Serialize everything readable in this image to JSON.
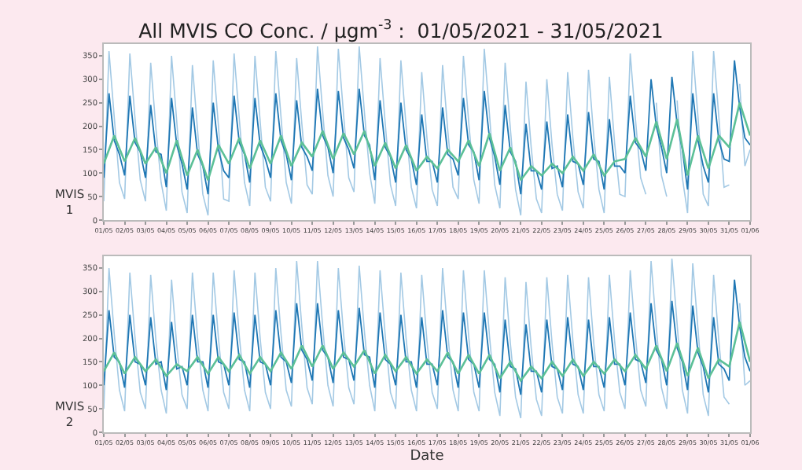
{
  "chart_data": [
    {
      "type": "line",
      "title": "All MVIS CO Conc. / μgm$^{-3}$ :  01/05/2021 - 31/05/2021",
      "ylabel": "MVIS\n1",
      "x": [
        "2021-05-01T00:00",
        "2021-05-01T06:00",
        "2021-05-01T12:00",
        "2021-05-01T18:00",
        "2021-05-02T00:00",
        "2021-05-02T06:00",
        "2021-05-02T12:00",
        "2021-05-02T18:00",
        "2021-05-03T00:00",
        "2021-05-03T06:00",
        "2021-05-03T12:00",
        "2021-05-03T18:00",
        "2021-05-04T00:00",
        "2021-05-04T06:00",
        "2021-05-04T12:00",
        "2021-05-04T18:00",
        "2021-05-05T00:00",
        "2021-05-05T06:00",
        "2021-05-05T12:00",
        "2021-05-05T18:00",
        "2021-05-06T00:00",
        "2021-05-06T06:00",
        "2021-05-06T12:00",
        "2021-05-06T18:00",
        "2021-05-07T00:00",
        "2021-05-07T06:00",
        "2021-05-07T12:00",
        "2021-05-07T18:00",
        "2021-05-08T00:00",
        "2021-05-08T06:00",
        "2021-05-08T12:00",
        "2021-05-08T18:00",
        "2021-05-09T00:00",
        "2021-05-09T06:00",
        "2021-05-09T12:00",
        "2021-05-09T18:00",
        "2021-05-10T00:00",
        "2021-05-10T06:00",
        "2021-05-10T12:00",
        "2021-05-10T18:00",
        "2021-05-11T00:00",
        "2021-05-11T06:00",
        "2021-05-11T12:00",
        "2021-05-11T18:00",
        "2021-05-12T00:00",
        "2021-05-12T06:00",
        "2021-05-12T12:00",
        "2021-05-12T18:00",
        "2021-05-13T00:00",
        "2021-05-13T06:00",
        "2021-05-13T12:00",
        "2021-05-13T18:00",
        "2021-05-14T00:00",
        "2021-05-14T06:00",
        "2021-05-14T12:00",
        "2021-05-14T18:00",
        "2021-05-15T00:00",
        "2021-05-15T06:00",
        "2021-05-15T12:00",
        "2021-05-15T18:00",
        "2021-05-16T00:00",
        "2021-05-16T06:00",
        "2021-05-16T12:00",
        "2021-05-16T18:00",
        "2021-05-17T00:00",
        "2021-05-17T06:00",
        "2021-05-17T12:00",
        "2021-05-17T18:00",
        "2021-05-18T00:00",
        "2021-05-18T06:00",
        "2021-05-18T12:00",
        "2021-05-18T18:00",
        "2021-05-19T00:00",
        "2021-05-19T06:00",
        "2021-05-19T12:00",
        "2021-05-19T18:00",
        "2021-05-20T00:00",
        "2021-05-20T06:00",
        "2021-05-20T12:00",
        "2021-05-20T18:00",
        "2021-05-21T00:00",
        "2021-05-21T06:00",
        "2021-05-21T12:00",
        "2021-05-21T18:00",
        "2021-05-22T00:00",
        "2021-05-22T06:00",
        "2021-05-22T12:00",
        "2021-05-22T18:00",
        "2021-05-23T00:00",
        "2021-05-23T06:00",
        "2021-05-23T12:00",
        "2021-05-23T18:00",
        "2021-05-24T00:00",
        "2021-05-24T06:00",
        "2021-05-24T12:00",
        "2021-05-24T18:00",
        "2021-05-25T00:00",
        "2021-05-25T06:00",
        "2021-05-25T12:00",
        "2021-05-25T18:00",
        "2021-05-26T00:00",
        "2021-05-26T06:00",
        "2021-05-26T12:00",
        "2021-05-26T18:00",
        "2021-05-27T00:00",
        "2021-05-27T06:00",
        "2021-05-27T12:00",
        "2021-05-27T18:00",
        "2021-05-28T00:00",
        "2021-05-28T06:00",
        "2021-05-28T12:00",
        "2021-05-28T18:00",
        "2021-05-29T00:00",
        "2021-05-29T06:00",
        "2021-05-29T12:00",
        "2021-05-29T18:00",
        "2021-05-30T00:00",
        "2021-05-30T06:00",
        "2021-05-30T12:00",
        "2021-05-30T18:00",
        "2021-05-31T00:00",
        "2021-05-31T06:00",
        "2021-05-31T12:00",
        "2021-05-31T18:00",
        "2021-06-01T00:00"
      ],
      "series": [
        {
          "color": "#a3c9e4",
          "values": [
            40,
            360,
            220,
            80,
            45,
            355,
            215,
            85,
            40,
            335,
            195,
            80,
            20,
            350,
            210,
            60,
            15,
            330,
            190,
            55,
            10,
            340,
            200,
            45,
            40,
            355,
            215,
            80,
            30,
            350,
            210,
            70,
            40,
            360,
            220,
            80,
            35,
            345,
            205,
            75,
            55,
            370,
            230,
            95,
            50,
            365,
            225,
            90,
            60,
            370,
            230,
            100,
            35,
            345,
            205,
            75,
            30,
            340,
            200,
            70,
            25,
            315,
            175,
            65,
            30,
            330,
            190,
            70,
            45,
            350,
            210,
            85,
            35,
            365,
            225,
            75,
            25,
            335,
            195,
            65,
            10,
            295,
            155,
            45,
            15,
            300,
            160,
            55,
            20,
            315,
            175,
            60,
            25,
            320,
            180,
            65,
            15,
            305,
            165,
            55,
            50,
            355,
            215,
            90,
            55,
            null,
            250,
            95,
            50,
            null,
            255,
            90,
            15,
            360,
            220,
            55,
            30,
            360,
            220,
            70,
            75,
            null,
            290,
            115,
            150
          ]
        },
        {
          "color": "#1f77b4",
          "values": [
            90,
            270,
            170,
            140,
            95,
            265,
            165,
            145,
            90,
            245,
            145,
            140,
            70,
            260,
            160,
            120,
            65,
            240,
            140,
            115,
            55,
            250,
            150,
            105,
            90,
            265,
            165,
            140,
            80,
            260,
            160,
            130,
            90,
            270,
            170,
            140,
            85,
            255,
            155,
            135,
            105,
            280,
            180,
            155,
            100,
            275,
            175,
            150,
            110,
            280,
            180,
            160,
            85,
            255,
            155,
            135,
            80,
            250,
            150,
            130,
            75,
            225,
            125,
            125,
            80,
            240,
            140,
            130,
            95,
            260,
            160,
            145,
            85,
            275,
            175,
            135,
            75,
            245,
            145,
            125,
            55,
            205,
            105,
            105,
            65,
            210,
            110,
            115,
            70,
            225,
            125,
            120,
            75,
            230,
            130,
            125,
            65,
            215,
            115,
            115,
            100,
            265,
            165,
            150,
            105,
            300,
            200,
            155,
            100,
            305,
            205,
            150,
            65,
            270,
            170,
            115,
            80,
            270,
            170,
            130,
            125,
            340,
            240,
            175,
            160
          ]
        },
        {
          "color": "#5cc097",
          "x": [
            "2021-05-01T00:00",
            "2021-05-01T12:00",
            "2021-05-02T00:00",
            "2021-05-02T12:00",
            "2021-05-03T00:00",
            "2021-05-03T12:00",
            "2021-05-04T00:00",
            "2021-05-04T12:00",
            "2021-05-05T00:00",
            "2021-05-05T12:00",
            "2021-05-06T00:00",
            "2021-05-06T12:00",
            "2021-05-07T00:00",
            "2021-05-07T12:00",
            "2021-05-08T00:00",
            "2021-05-08T12:00",
            "2021-05-09T00:00",
            "2021-05-09T12:00",
            "2021-05-10T00:00",
            "2021-05-10T12:00",
            "2021-05-11T00:00",
            "2021-05-11T12:00",
            "2021-05-12T00:00",
            "2021-05-12T12:00",
            "2021-05-13T00:00",
            "2021-05-13T12:00",
            "2021-05-14T00:00",
            "2021-05-14T12:00",
            "2021-05-15T00:00",
            "2021-05-15T12:00",
            "2021-05-16T00:00",
            "2021-05-16T12:00",
            "2021-05-17T00:00",
            "2021-05-17T12:00",
            "2021-05-18T00:00",
            "2021-05-18T12:00",
            "2021-05-19T00:00",
            "2021-05-19T12:00",
            "2021-05-20T00:00",
            "2021-05-20T12:00",
            "2021-05-21T00:00",
            "2021-05-21T12:00",
            "2021-05-22T00:00",
            "2021-05-22T12:00",
            "2021-05-23T00:00",
            "2021-05-23T12:00",
            "2021-05-24T00:00",
            "2021-05-24T12:00",
            "2021-05-25T00:00",
            "2021-05-25T12:00",
            "2021-05-26T00:00",
            "2021-05-26T12:00",
            "2021-05-27T00:00",
            "2021-05-27T12:00",
            "2021-05-28T00:00",
            "2021-05-28T12:00",
            "2021-05-29T00:00",
            "2021-05-29T12:00",
            "2021-05-30T00:00",
            "2021-05-30T12:00",
            "2021-05-31T00:00",
            "2021-05-31T12:00",
            "2021-06-01T00:00"
          ],
          "values": [
            120,
            180,
            125,
            175,
            120,
            155,
            100,
            170,
            95,
            150,
            85,
            160,
            120,
            175,
            110,
            170,
            120,
            180,
            115,
            165,
            135,
            190,
            130,
            185,
            140,
            190,
            115,
            165,
            110,
            160,
            105,
            135,
            110,
            150,
            125,
            170,
            115,
            185,
            105,
            155,
            85,
            115,
            95,
            120,
            100,
            135,
            105,
            140,
            95,
            125,
            130,
            175,
            135,
            210,
            130,
            215,
            95,
            180,
            110,
            180,
            155,
            250,
            180
          ]
        }
      ],
      "xlim": [
        "2021-05-01",
        "2021-06-01"
      ],
      "xticks": [
        {
          "value": "2021-05-01",
          "label": "01/05"
        },
        {
          "value": "2021-05-02",
          "label": "02/05"
        },
        {
          "value": "2021-05-03",
          "label": "03/05"
        },
        {
          "value": "2021-05-04",
          "label": "04/05"
        },
        {
          "value": "2021-05-05",
          "label": "05/05"
        },
        {
          "value": "2021-05-06",
          "label": "06/05"
        },
        {
          "value": "2021-05-07",
          "label": "07/05"
        },
        {
          "value": "2021-05-08",
          "label": "08/05"
        },
        {
          "value": "2021-05-09",
          "label": "09/05"
        },
        {
          "value": "2021-05-10",
          "label": "10/05"
        },
        {
          "value": "2021-05-11",
          "label": "11/05"
        },
        {
          "value": "2021-05-12",
          "label": "12/05"
        },
        {
          "value": "2021-05-13",
          "label": "13/05"
        },
        {
          "value": "2021-05-14",
          "label": "14/05"
        },
        {
          "value": "2021-05-15",
          "label": "15/05"
        },
        {
          "value": "2021-05-16",
          "label": "16/05"
        },
        {
          "value": "2021-05-17",
          "label": "17/05"
        },
        {
          "value": "2021-05-18",
          "label": "18/05"
        },
        {
          "value": "2021-05-19",
          "label": "19/05"
        },
        {
          "value": "2021-05-20",
          "label": "20/05"
        },
        {
          "value": "2021-05-21",
          "label": "21/05"
        },
        {
          "value": "2021-05-22",
          "label": "22/05"
        },
        {
          "value": "2021-05-23",
          "label": "23/05"
        },
        {
          "value": "2021-05-24",
          "label": "24/05"
        },
        {
          "value": "2021-05-25",
          "label": "25/05"
        },
        {
          "value": "2021-05-26",
          "label": "26/05"
        },
        {
          "value": "2021-05-27",
          "label": "27/05"
        },
        {
          "value": "2021-05-28",
          "label": "28/05"
        },
        {
          "value": "2021-05-29",
          "label": "29/05"
        },
        {
          "value": "2021-05-30",
          "label": "30/05"
        },
        {
          "value": "2021-05-31",
          "label": "31/05"
        },
        {
          "value": "2021-06-01",
          "label": "01/06"
        }
      ],
      "ylim": [
        0,
        375
      ],
      "yticks": [
        0,
        50,
        100,
        150,
        200,
        250,
        300,
        350
      ]
    },
    {
      "type": "line",
      "xlabel": "Date",
      "ylabel": "MVIS\n2",
      "x": [
        "2021-05-01T00:00",
        "2021-05-01T06:00",
        "2021-05-01T12:00",
        "2021-05-01T18:00",
        "2021-05-02T00:00",
        "2021-05-02T06:00",
        "2021-05-02T12:00",
        "2021-05-02T18:00",
        "2021-05-03T00:00",
        "2021-05-03T06:00",
        "2021-05-03T12:00",
        "2021-05-03T18:00",
        "2021-05-04T00:00",
        "2021-05-04T06:00",
        "2021-05-04T12:00",
        "2021-05-04T18:00",
        "2021-05-05T00:00",
        "2021-05-05T06:00",
        "2021-05-05T12:00",
        "2021-05-05T18:00",
        "2021-05-06T00:00",
        "2021-05-06T06:00",
        "2021-05-06T12:00",
        "2021-05-06T18:00",
        "2021-05-07T00:00",
        "2021-05-07T06:00",
        "2021-05-07T12:00",
        "2021-05-07T18:00",
        "2021-05-08T00:00",
        "2021-05-08T06:00",
        "2021-05-08T12:00",
        "2021-05-08T18:00",
        "2021-05-09T00:00",
        "2021-05-09T06:00",
        "2021-05-09T12:00",
        "2021-05-09T18:00",
        "2021-05-10T00:00",
        "2021-05-10T06:00",
        "2021-05-10T12:00",
        "2021-05-10T18:00",
        "2021-05-11T00:00",
        "2021-05-11T06:00",
        "2021-05-11T12:00",
        "2021-05-11T18:00",
        "2021-05-12T00:00",
        "2021-05-12T06:00",
        "2021-05-12T12:00",
        "2021-05-12T18:00",
        "2021-05-13T00:00",
        "2021-05-13T06:00",
        "2021-05-13T12:00",
        "2021-05-13T18:00",
        "2021-05-14T00:00",
        "2021-05-14T06:00",
        "2021-05-14T12:00",
        "2021-05-14T18:00",
        "2021-05-15T00:00",
        "2021-05-15T06:00",
        "2021-05-15T12:00",
        "2021-05-15T18:00",
        "2021-05-16T00:00",
        "2021-05-16T06:00",
        "2021-05-16T12:00",
        "2021-05-16T18:00",
        "2021-05-17T00:00",
        "2021-05-17T06:00",
        "2021-05-17T12:00",
        "2021-05-17T18:00",
        "2021-05-18T00:00",
        "2021-05-18T06:00",
        "2021-05-18T12:00",
        "2021-05-18T18:00",
        "2021-05-19T00:00",
        "2021-05-19T06:00",
        "2021-05-19T12:00",
        "2021-05-19T18:00",
        "2021-05-20T00:00",
        "2021-05-20T06:00",
        "2021-05-20T12:00",
        "2021-05-20T18:00",
        "2021-05-21T00:00",
        "2021-05-21T06:00",
        "2021-05-21T12:00",
        "2021-05-21T18:00",
        "2021-05-22T00:00",
        "2021-05-22T06:00",
        "2021-05-22T12:00",
        "2021-05-22T18:00",
        "2021-05-23T00:00",
        "2021-05-23T06:00",
        "2021-05-23T12:00",
        "2021-05-23T18:00",
        "2021-05-24T00:00",
        "2021-05-24T06:00",
        "2021-05-24T12:00",
        "2021-05-24T18:00",
        "2021-05-25T00:00",
        "2021-05-25T06:00",
        "2021-05-25T12:00",
        "2021-05-25T18:00",
        "2021-05-26T00:00",
        "2021-05-26T06:00",
        "2021-05-26T12:00",
        "2021-05-26T18:00",
        "2021-05-27T00:00",
        "2021-05-27T06:00",
        "2021-05-27T12:00",
        "2021-05-27T18:00",
        "2021-05-28T00:00",
        "2021-05-28T06:00",
        "2021-05-28T12:00",
        "2021-05-28T18:00",
        "2021-05-29T00:00",
        "2021-05-29T06:00",
        "2021-05-29T12:00",
        "2021-05-29T18:00",
        "2021-05-30T00:00",
        "2021-05-30T06:00",
        "2021-05-30T12:00",
        "2021-05-30T18:00",
        "2021-05-31T00:00",
        "2021-05-31T06:00",
        "2021-05-31T12:00",
        "2021-05-31T18:00",
        "2021-06-01T00:00"
      ],
      "series": [
        {
          "color": "#a3c9e4",
          "values": [
            50,
            350,
            210,
            90,
            45,
            340,
            200,
            85,
            50,
            335,
            195,
            90,
            40,
            325,
            185,
            80,
            50,
            340,
            200,
            90,
            45,
            340,
            200,
            85,
            50,
            345,
            205,
            90,
            45,
            340,
            200,
            85,
            50,
            350,
            210,
            90,
            55,
            365,
            225,
            95,
            60,
            365,
            225,
            100,
            55,
            350,
            210,
            95,
            60,
            355,
            215,
            100,
            45,
            345,
            205,
            85,
            50,
            340,
            200,
            90,
            45,
            335,
            195,
            85,
            50,
            350,
            210,
            90,
            45,
            345,
            205,
            85,
            45,
            345,
            205,
            85,
            35,
            330,
            190,
            75,
            30,
            320,
            180,
            70,
            35,
            330,
            190,
            75,
            40,
            335,
            195,
            80,
            40,
            330,
            190,
            80,
            45,
            335,
            195,
            85,
            50,
            345,
            205,
            90,
            55,
            365,
            225,
            95,
            50,
            370,
            230,
            90,
            40,
            360,
            220,
            80,
            35,
            335,
            195,
            75,
            60,
            null,
            275,
            100,
            110
          ]
        },
        {
          "color": "#1f77b4",
          "values": [
            100,
            260,
            160,
            150,
            95,
            250,
            150,
            145,
            100,
            245,
            145,
            150,
            90,
            235,
            135,
            140,
            100,
            250,
            150,
            150,
            95,
            250,
            150,
            145,
            100,
            255,
            155,
            150,
            95,
            250,
            150,
            145,
            100,
            260,
            160,
            150,
            105,
            275,
            175,
            155,
            110,
            275,
            175,
            160,
            105,
            260,
            160,
            155,
            110,
            265,
            165,
            160,
            95,
            255,
            155,
            145,
            100,
            250,
            150,
            150,
            95,
            245,
            145,
            145,
            100,
            260,
            160,
            150,
            95,
            255,
            155,
            145,
            95,
            255,
            155,
            145,
            85,
            240,
            140,
            135,
            80,
            230,
            130,
            130,
            85,
            240,
            140,
            135,
            90,
            245,
            145,
            140,
            90,
            240,
            140,
            140,
            95,
            245,
            145,
            145,
            100,
            255,
            155,
            150,
            105,
            275,
            175,
            155,
            100,
            280,
            180,
            150,
            90,
            270,
            170,
            140,
            85,
            245,
            145,
            135,
            110,
            325,
            225,
            160,
            130
          ]
        },
        {
          "color": "#5cc097",
          "x": [
            "2021-05-01T00:00",
            "2021-05-01T12:00",
            "2021-05-02T00:00",
            "2021-05-02T12:00",
            "2021-05-03T00:00",
            "2021-05-03T12:00",
            "2021-05-04T00:00",
            "2021-05-04T12:00",
            "2021-05-05T00:00",
            "2021-05-05T12:00",
            "2021-05-06T00:00",
            "2021-05-06T12:00",
            "2021-05-07T00:00",
            "2021-05-07T12:00",
            "2021-05-08T00:00",
            "2021-05-08T12:00",
            "2021-05-09T00:00",
            "2021-05-09T12:00",
            "2021-05-10T00:00",
            "2021-05-10T12:00",
            "2021-05-11T00:00",
            "2021-05-11T12:00",
            "2021-05-12T00:00",
            "2021-05-12T12:00",
            "2021-05-13T00:00",
            "2021-05-13T12:00",
            "2021-05-14T00:00",
            "2021-05-14T12:00",
            "2021-05-15T00:00",
            "2021-05-15T12:00",
            "2021-05-16T00:00",
            "2021-05-16T12:00",
            "2021-05-17T00:00",
            "2021-05-17T12:00",
            "2021-05-18T00:00",
            "2021-05-18T12:00",
            "2021-05-19T00:00",
            "2021-05-19T12:00",
            "2021-05-20T00:00",
            "2021-05-20T12:00",
            "2021-05-21T00:00",
            "2021-05-21T12:00",
            "2021-05-22T00:00",
            "2021-05-22T12:00",
            "2021-05-23T00:00",
            "2021-05-23T12:00",
            "2021-05-24T00:00",
            "2021-05-24T12:00",
            "2021-05-25T00:00",
            "2021-05-25T12:00",
            "2021-05-26T00:00",
            "2021-05-26T12:00",
            "2021-05-27T00:00",
            "2021-05-27T12:00",
            "2021-05-28T00:00",
            "2021-05-28T12:00",
            "2021-05-29T00:00",
            "2021-05-29T12:00",
            "2021-05-30T00:00",
            "2021-05-30T12:00",
            "2021-05-31T00:00",
            "2021-05-31T12:00",
            "2021-06-01T00:00"
          ],
          "values": [
            130,
            170,
            125,
            160,
            130,
            155,
            120,
            145,
            130,
            160,
            125,
            160,
            130,
            165,
            125,
            160,
            130,
            170,
            135,
            185,
            140,
            185,
            135,
            170,
            140,
            175,
            125,
            165,
            130,
            160,
            125,
            155,
            130,
            170,
            125,
            165,
            125,
            165,
            115,
            150,
            110,
            140,
            115,
            150,
            120,
            155,
            120,
            150,
            125,
            155,
            130,
            165,
            135,
            185,
            130,
            190,
            120,
            180,
            115,
            155,
            140,
            235,
            150
          ]
        }
      ],
      "xlim": [
        "2021-05-01",
        "2021-06-01"
      ],
      "xticks": [
        {
          "value": "2021-05-01",
          "label": "01/05"
        },
        {
          "value": "2021-05-02",
          "label": "02/05"
        },
        {
          "value": "2021-05-03",
          "label": "03/05"
        },
        {
          "value": "2021-05-04",
          "label": "04/05"
        },
        {
          "value": "2021-05-05",
          "label": "05/05"
        },
        {
          "value": "2021-05-06",
          "label": "06/05"
        },
        {
          "value": "2021-05-07",
          "label": "07/05"
        },
        {
          "value": "2021-05-08",
          "label": "08/05"
        },
        {
          "value": "2021-05-09",
          "label": "09/05"
        },
        {
          "value": "2021-05-10",
          "label": "10/05"
        },
        {
          "value": "2021-05-11",
          "label": "11/05"
        },
        {
          "value": "2021-05-12",
          "label": "12/05"
        },
        {
          "value": "2021-05-13",
          "label": "13/05"
        },
        {
          "value": "2021-05-14",
          "label": "14/05"
        },
        {
          "value": "2021-05-15",
          "label": "15/05"
        },
        {
          "value": "2021-05-16",
          "label": "16/05"
        },
        {
          "value": "2021-05-17",
          "label": "17/05"
        },
        {
          "value": "2021-05-18",
          "label": "18/05"
        },
        {
          "value": "2021-05-19",
          "label": "19/05"
        },
        {
          "value": "2021-05-20",
          "label": "20/05"
        },
        {
          "value": "2021-05-21",
          "label": "21/05"
        },
        {
          "value": "2021-05-22",
          "label": "22/05"
        },
        {
          "value": "2021-05-23",
          "label": "23/05"
        },
        {
          "value": "2021-05-24",
          "label": "24/05"
        },
        {
          "value": "2021-05-25",
          "label": "25/05"
        },
        {
          "value": "2021-05-26",
          "label": "26/05"
        },
        {
          "value": "2021-05-27",
          "label": "27/05"
        },
        {
          "value": "2021-05-28",
          "label": "28/05"
        },
        {
          "value": "2021-05-29",
          "label": "29/05"
        },
        {
          "value": "2021-05-30",
          "label": "30/05"
        },
        {
          "value": "2021-05-31",
          "label": "31/05"
        },
        {
          "value": "2021-06-01",
          "label": "01/06"
        }
      ],
      "ylim": [
        0,
        375
      ],
      "yticks": [
        0,
        50,
        100,
        150,
        200,
        250,
        300,
        350
      ]
    }
  ]
}
